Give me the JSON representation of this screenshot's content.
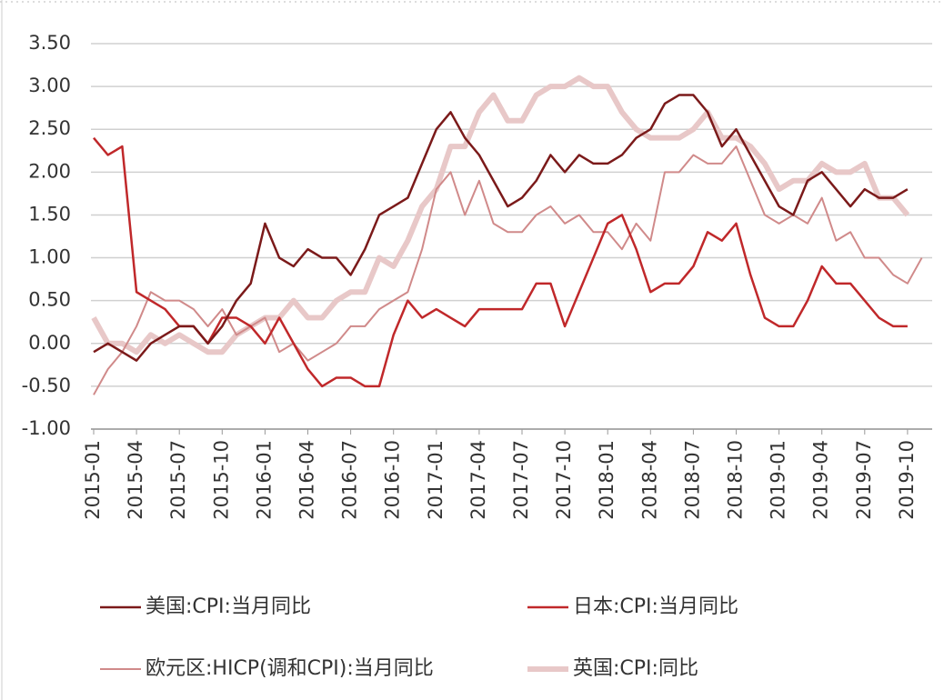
{
  "chart_data": {
    "type": "line",
    "categories": [
      "2015-01",
      null,
      null,
      "2015-04",
      null,
      null,
      "2015-07",
      null,
      null,
      "2015-10",
      null,
      null,
      "2016-01",
      null,
      null,
      "2016-04",
      null,
      null,
      "2016-07",
      null,
      null,
      "2016-10",
      null,
      null,
      "2017-01",
      null,
      null,
      "2017-04",
      null,
      null,
      "2017-07",
      null,
      null,
      "2017-10",
      null,
      null,
      "2018-01",
      null,
      null,
      "2018-04",
      null,
      null,
      "2018-07",
      null,
      null,
      "2018-10",
      null,
      null,
      "2019-01",
      null,
      null,
      "2019-04",
      null,
      null,
      "2019-07",
      null,
      null,
      "2019-10",
      null
    ],
    "series": [
      {
        "name": "美国:CPI:当月同比",
        "color": "#7b1a1a",
        "width": 2.5,
        "values": [
          -0.1,
          0.0,
          -0.1,
          -0.2,
          0.0,
          0.1,
          0.2,
          0.2,
          0.0,
          0.2,
          0.5,
          0.7,
          1.4,
          1.0,
          0.9,
          1.1,
          1.0,
          1.0,
          0.8,
          1.1,
          1.5,
          1.6,
          1.7,
          2.1,
          2.5,
          2.7,
          2.4,
          2.2,
          1.9,
          1.6,
          1.7,
          1.9,
          2.2,
          2.0,
          2.2,
          2.1,
          2.1,
          2.2,
          2.4,
          2.5,
          2.8,
          2.9,
          2.9,
          2.7,
          2.3,
          2.5,
          2.2,
          1.9,
          1.6,
          1.5,
          1.9,
          2.0,
          1.8,
          1.6,
          1.8,
          1.7,
          1.7,
          1.8,
          null
        ]
      },
      {
        "name": "日本:CPI:当月同比",
        "color": "#c0282a",
        "width": 2.5,
        "values": [
          2.4,
          2.2,
          2.3,
          0.6,
          0.5,
          0.4,
          0.2,
          0.2,
          0.0,
          0.3,
          0.3,
          0.2,
          0.0,
          0.3,
          0.0,
          -0.3,
          -0.5,
          -0.4,
          -0.4,
          -0.5,
          -0.5,
          0.1,
          0.5,
          0.3,
          0.4,
          0.3,
          0.2,
          0.4,
          0.4,
          0.4,
          0.4,
          0.7,
          0.7,
          0.2,
          0.6,
          1.0,
          1.4,
          1.5,
          1.1,
          0.6,
          0.7,
          0.7,
          0.9,
          1.3,
          1.2,
          1.4,
          0.8,
          0.3,
          0.2,
          0.2,
          0.5,
          0.9,
          0.7,
          0.7,
          0.5,
          0.3,
          0.2,
          0.2,
          null
        ]
      },
      {
        "name": "欧元区:HICP(调和CPI):当月同比",
        "color": "#d08a8a",
        "width": 2,
        "values": [
          -0.6,
          -0.3,
          -0.1,
          0.2,
          0.6,
          0.5,
          0.5,
          0.4,
          0.2,
          0.4,
          0.1,
          0.2,
          0.3,
          -0.1,
          0.0,
          -0.2,
          -0.1,
          0.0,
          0.2,
          0.2,
          0.4,
          0.5,
          0.6,
          1.1,
          1.8,
          2.0,
          1.5,
          1.9,
          1.4,
          1.3,
          1.3,
          1.5,
          1.6,
          1.4,
          1.5,
          1.3,
          1.3,
          1.1,
          1.4,
          1.2,
          2.0,
          2.0,
          2.2,
          2.1,
          2.1,
          2.3,
          1.9,
          1.5,
          1.4,
          1.5,
          1.4,
          1.7,
          1.2,
          1.3,
          1.0,
          1.0,
          0.8,
          0.7,
          1.0
        ]
      },
      {
        "name": "英国:CPI:同比",
        "color": "#e8c8c8",
        "width": 6,
        "values": [
          0.3,
          0.0,
          0.0,
          -0.1,
          0.1,
          0.0,
          0.1,
          0.0,
          -0.1,
          -0.1,
          0.1,
          0.2,
          0.3,
          0.3,
          0.5,
          0.3,
          0.3,
          0.5,
          0.6,
          0.6,
          1.0,
          0.9,
          1.2,
          1.6,
          1.8,
          2.3,
          2.3,
          2.7,
          2.9,
          2.6,
          2.6,
          2.9,
          3.0,
          3.0,
          3.1,
          3.0,
          3.0,
          2.7,
          2.5,
          2.4,
          2.4,
          2.4,
          2.5,
          2.7,
          2.4,
          2.4,
          2.3,
          2.1,
          1.8,
          1.9,
          1.9,
          2.1,
          2.0,
          2.0,
          2.1,
          1.7,
          1.7,
          1.5,
          null
        ]
      }
    ],
    "ylim": [
      -1,
      3.5
    ],
    "yticks": [
      {
        "value": -1,
        "label": "-1.00"
      },
      {
        "value": -0.5,
        "label": "-0.50"
      },
      {
        "value": 0,
        "label": "0.00"
      },
      {
        "value": 0.5,
        "label": "0.50"
      },
      {
        "value": 1,
        "label": "1.00"
      },
      {
        "value": 1.5,
        "label": "1.50"
      },
      {
        "value": 2,
        "label": "2.00"
      },
      {
        "value": 2.5,
        "label": "2.50"
      },
      {
        "value": 3,
        "label": "3.00"
      },
      {
        "value": 3.5,
        "label": "3.50"
      }
    ],
    "grid": true,
    "legend": "bottom"
  }
}
